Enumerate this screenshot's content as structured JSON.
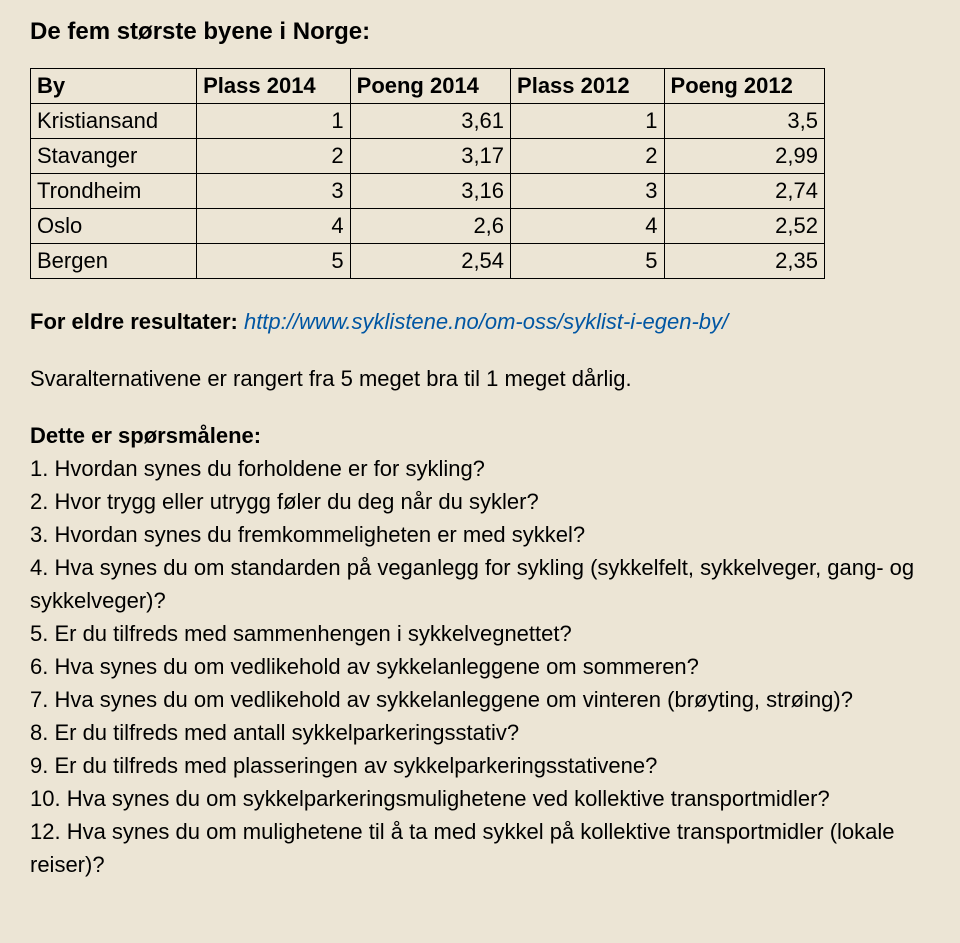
{
  "title": "De fem største byene i Norge:",
  "table": {
    "columns": [
      "By",
      "Plass 2014",
      "Poeng 2014",
      "Plass 2012",
      "Poeng 2012"
    ],
    "rows": [
      [
        "Kristiansand",
        "1",
        "3,61",
        "1",
        "3,5"
      ],
      [
        "Stavanger",
        "2",
        "3,17",
        "2",
        "2,99"
      ],
      [
        "Trondheim",
        "3",
        "3,16",
        "3",
        "2,74"
      ],
      [
        "Oslo",
        "4",
        "2,6",
        "4",
        "2,52"
      ],
      [
        "Bergen",
        "5",
        "2,54",
        "5",
        "2,35"
      ]
    ]
  },
  "older_results_label": "For eldre resultater: ",
  "older_results_link": "http://www.syklistene.no/om-oss/syklist-i-egen-by/",
  "rangert_text": "Svaralternativene er rangert fra 5 meget bra til 1 meget dårlig.",
  "questions_heading": "Dette er spørsmålene:",
  "questions": [
    "1. Hvordan synes du forholdene er for sykling?",
    "2. Hvor trygg eller utrygg føler du deg når du sykler?",
    "3. Hvordan synes du fremkommeligheten er med sykkel?",
    "4. Hva synes du om standarden på veganlegg for sykling (sykkelfelt, sykkelveger, gang- og sykkelveger)?",
    "5. Er du tilfreds med sammenhengen i sykkelvegnettet?",
    "6. Hva synes du om vedlikehold av sykkelanleggene om sommeren?",
    "7. Hva synes du om vedlikehold av sykkelanleggene om vinteren (brøyting, strøing)?",
    "8. Er du tilfreds med antall sykkelparkeringsstativ?",
    "9. Er du tilfreds med plasseringen av sykkelparkeringsstativene?",
    "10. Hva synes du om sykkelparkeringsmulighetene ved kollektive transportmidler?",
    "12. Hva synes du om mulighetene til å ta med sykkel på kollektive transportmidler (lokale reiser)?"
  ]
}
